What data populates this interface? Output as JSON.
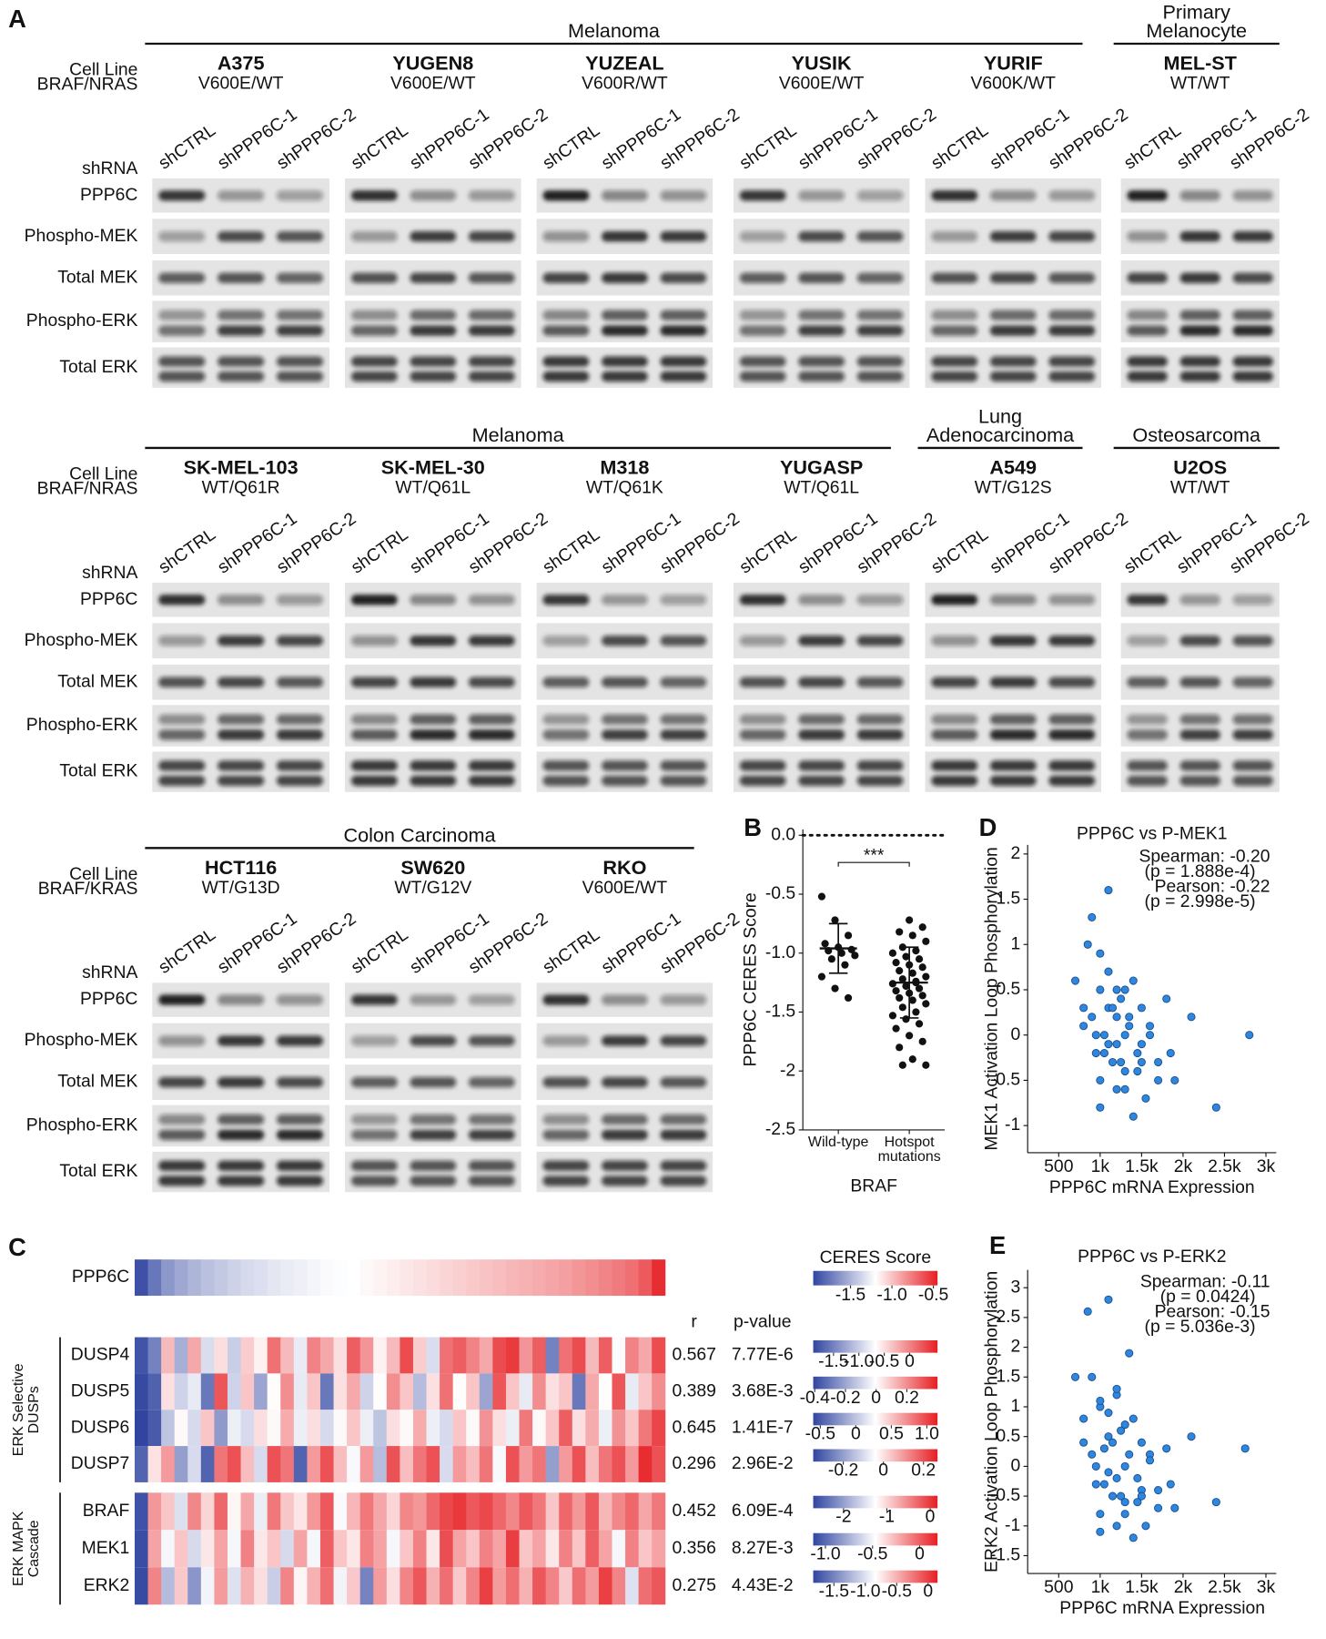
{
  "panel_a": {
    "label": "A",
    "lanes": [
      "shCTRL",
      "shPPP6C-1",
      "shPPP6C-2"
    ],
    "shrna_label": "shRNA",
    "blot_labels": [
      "PPP6C",
      "Phospho-MEK",
      "Total MEK",
      "Phospho-ERK",
      "Total ERK"
    ],
    "rows": [
      {
        "cell_line_label": "Cell Line",
        "genotype_label": "BRAF/NRAS",
        "groups": [
          {
            "title": "Melanoma",
            "cell_lines": [
              {
                "name": "A375",
                "genotype": "V600E/WT"
              },
              {
                "name": "YUGEN8",
                "genotype": "V600E/WT"
              },
              {
                "name": "YUZEAL",
                "genotype": "V600R/WT"
              },
              {
                "name": "YUSIK",
                "genotype": "V600E/WT"
              },
              {
                "name": "YURIF",
                "genotype": "V600K/WT"
              }
            ]
          },
          {
            "title": "Primary Melanocyte",
            "cell_lines": [
              {
                "name": "MEL-ST",
                "genotype": "WT/WT"
              }
            ]
          }
        ]
      },
      {
        "cell_line_label": "Cell Line",
        "genotype_label": "BRAF/NRAS",
        "groups": [
          {
            "title": "Melanoma",
            "cell_lines": [
              {
                "name": "SK-MEL-103",
                "genotype": "WT/Q61R"
              },
              {
                "name": "SK-MEL-30",
                "genotype": "WT/Q61L"
              },
              {
                "name": "M318",
                "genotype": "WT/Q61K"
              },
              {
                "name": "YUGASP",
                "genotype": "WT/Q61L"
              }
            ]
          },
          {
            "title": "Lung Adenocarcinoma",
            "cell_lines": [
              {
                "name": "A549",
                "genotype": "WT/G12S"
              }
            ]
          },
          {
            "title": "Osteosarcoma",
            "cell_lines": [
              {
                "name": "U2OS",
                "genotype": "WT/WT"
              }
            ]
          }
        ]
      },
      {
        "cell_line_label": "Cell Line",
        "genotype_label": "BRAF/KRAS",
        "groups": [
          {
            "title": "Colon Carcinoma",
            "cell_lines": [
              {
                "name": "HCT116",
                "genotype": "WT/G13D"
              },
              {
                "name": "SW620",
                "genotype": "WT/G12V"
              },
              {
                "name": "RKO",
                "genotype": "V600E/WT"
              }
            ]
          }
        ]
      }
    ]
  },
  "panel_c": {
    "label": "C",
    "scale_title": "CERES Score",
    "r_header": "r",
    "p_header": "p-value",
    "target": {
      "name": "PPP6C",
      "lim": [
        -1.95,
        -0.45
      ],
      "ticks": [
        -1.5,
        {
          "value": -1,
          "label": "-1.0"
        },
        -0.5
      ],
      "values": [
        -1.9,
        -1.75,
        -1.62,
        -1.55,
        -1.5,
        -1.45,
        -1.42,
        -1.38,
        -1.35,
        -1.33,
        -1.3,
        -1.28,
        -1.26,
        -1.24,
        -1.22,
        -1.21,
        -1.2,
        -1.18,
        -1.16,
        -1.14,
        -1.12,
        -1.1,
        -1.08,
        -1.06,
        -1.04,
        -1.02,
        -1.0,
        -0.98,
        -0.96,
        -0.94,
        -0.92,
        -0.9,
        -0.88,
        -0.85,
        -0.82,
        -0.79,
        -0.76,
        -0.72,
        -0.65,
        -0.5
      ]
    },
    "groups": [
      {
        "title": "ERK Selective DUSPs",
        "rows": [
          {
            "name": "DUSP4",
            "r": 0.567,
            "p": "7.77E-6",
            "lim": [
              -1.9,
              0.55
            ],
            "ticks": [
              -1.5,
              {
                "value": -1,
                "label": "-1.0"
              },
              -0.5,
              0
            ],
            "values": [
              -1.8,
              -1.5,
              -0.3,
              -1.2,
              -0.2,
              -0.9,
              -0.5,
              -1.0,
              -0.4,
              -0.6,
              0.1,
              -0.3,
              -0.8,
              0.0,
              -0.2,
              -0.5,
              0.2,
              -0.1,
              -0.6,
              -0.3,
              0.3,
              -0.4,
              -0.9,
              0.1,
              0.2,
              0.0,
              -0.2,
              0.3,
              0.4,
              -0.1,
              0.2,
              -1.5,
              0.1,
              0.3,
              -0.3,
              0.2,
              -0.7,
              0.0,
              -0.2,
              0.3
            ]
          },
          {
            "name": "DUSP5",
            "r": 0.389,
            "p": "3.68E-3",
            "lim": [
              -0.41,
              0.4
            ],
            "ticks": [
              -0.4,
              -0.2,
              0,
              0.2
            ],
            "values": [
              -0.4,
              -0.35,
              0.05,
              -0.1,
              -0.05,
              -0.3,
              0.3,
              -0.1,
              0.1,
              -0.2,
              0.0,
              0.2,
              -0.05,
              0.1,
              -0.3,
              0.05,
              0.15,
              -0.1,
              0.0,
              0.2,
              0.1,
              -0.15,
              0.05,
              0.25,
              0.0,
              0.1,
              -0.2,
              0.3,
              0.1,
              -0.05,
              0.2,
              0.05,
              0.1,
              -0.3,
              0.15,
              0.0,
              0.3,
              -0.05,
              0.1,
              0.2
            ]
          },
          {
            "name": "DUSP6",
            "r": 0.645,
            "p": "1.41E-7",
            "lim": [
              -0.6,
              1.15
            ],
            "ticks": [
              -0.5,
              0,
              0.5,
              {
                "value": 1,
                "label": "1.0"
              }
            ],
            "values": [
              -0.6,
              -0.5,
              0.0,
              0.3,
              0.1,
              0.5,
              -0.2,
              0.2,
              0.1,
              0.4,
              0.3,
              0.6,
              0.2,
              0.4,
              0.1,
              0.3,
              0.5,
              0.2,
              0.0,
              0.4,
              0.3,
              0.6,
              0.2,
              0.1,
              0.5,
              0.3,
              0.7,
              0.4,
              0.2,
              0.8,
              0.3,
              0.5,
              0.9,
              0.4,
              0.6,
              0.2,
              0.7,
              0.5,
              0.8,
              1.0
            ]
          },
          {
            "name": "DUSP7",
            "r": 0.296,
            "p": "2.96E-2",
            "lim": [
              -0.35,
              0.27
            ],
            "ticks": [
              -0.2,
              0,
              0.2
            ],
            "values": [
              -0.3,
              0.0,
              0.1,
              -0.2,
              -0.1,
              -0.3,
              0.15,
              0.2,
              0.05,
              -0.1,
              0.2,
              0.15,
              -0.3,
              0.1,
              0.2,
              0.05,
              -0.05,
              0.1,
              -0.15,
              0.2,
              0.05,
              0.15,
              0.2,
              -0.1,
              0.1,
              0.05,
              0.15,
              -0.05,
              0.2,
              0.1,
              0.15,
              -0.2,
              0.1,
              0.2,
              0.05,
              0.15,
              0.2,
              0.1,
              0.25,
              0.2
            ]
          }
        ]
      },
      {
        "title": "ERK MAPK Cascade",
        "rows": [
          {
            "name": "BRAF",
            "r": 0.452,
            "p": "6.09E-4",
            "lim": [
              -2.7,
              0.17
            ],
            "ticks": [
              -2,
              -1,
              0
            ],
            "values": [
              -2.6,
              -0.6,
              -0.9,
              -1.5,
              -0.5,
              -1.0,
              -0.3,
              -1.2,
              -0.7,
              -1.4,
              -0.4,
              -0.9,
              -1.1,
              -0.6,
              -0.2,
              -1.3,
              -0.8,
              -0.4,
              -0.7,
              -1.0,
              -0.5,
              -0.6,
              -0.3,
              -0.1,
              0.0,
              -0.2,
              -0.1,
              -0.3,
              -0.5,
              -0.2,
              -0.4,
              -0.9,
              -0.3,
              -0.6,
              -0.2,
              -0.8,
              -0.5,
              -0.3,
              -0.7,
              -0.4
            ]
          },
          {
            "name": "MEK1",
            "r": 0.356,
            "p": "8.27E-3",
            "lim": [
              -1.13,
              0.19
            ],
            "ticks": [
              {
                "value": -1,
                "label": "-1.0"
              },
              -0.5,
              0
            ],
            "values": [
              -1.1,
              -0.2,
              -0.5,
              -0.3,
              -0.6,
              -0.4,
              -0.2,
              -0.5,
              -0.1,
              -0.4,
              -0.3,
              -0.6,
              -0.2,
              -0.5,
              0.0,
              -0.3,
              -0.4,
              -0.1,
              -0.2,
              -0.5,
              -0.3,
              -0.1,
              -0.4,
              0.05,
              -0.2,
              -0.3,
              -0.1,
              -0.2,
              0.1,
              -0.3,
              -0.2,
              -0.4,
              -0.1,
              -0.3,
              0.0,
              -0.2,
              -0.5,
              -0.1,
              -0.3,
              -0.2
            ]
          },
          {
            "name": "ERK2",
            "r": 0.275,
            "p": "4.43E-2",
            "lim": [
              -1.83,
              0.15
            ],
            "ticks": [
              -1.5,
              {
                "value": -1,
                "label": "-1.0"
              },
              -0.5,
              0
            ],
            "values": [
              -1.8,
              -0.3,
              -1.2,
              -0.6,
              -1.4,
              -0.9,
              -0.4,
              -1.0,
              -0.5,
              -0.7,
              -1.1,
              -0.3,
              -0.8,
              -0.5,
              -0.2,
              -0.9,
              -0.6,
              -1.5,
              -0.4,
              -0.7,
              -0.3,
              -0.1,
              -0.5,
              -0.2,
              -0.6,
              -0.3,
              0.0,
              -0.4,
              -0.2,
              -0.5,
              -0.1,
              -0.3,
              -0.6,
              -0.2,
              -0.4,
              0.0,
              -0.3,
              -1.0,
              -0.2,
              -0.1
            ]
          }
        ]
      }
    ]
  },
  "chart_data": [
    {
      "type": "dot",
      "panel_label": "B",
      "ylabel": "PPP6C CERES Score",
      "xlabel": "BRAF",
      "categories": [
        "Wild-type",
        "Hotspot mutations"
      ],
      "values": [
        [
          -0.52,
          -0.72,
          -0.85,
          -0.92,
          -0.95,
          -0.97,
          -0.98,
          -1.0,
          -1.02,
          -1.05,
          -1.1,
          -1.2,
          -1.3,
          -1.38
        ],
        [
          -0.72,
          -0.78,
          -0.82,
          -0.85,
          -0.9,
          -0.95,
          -0.98,
          -1.0,
          -1.03,
          -1.05,
          -1.08,
          -1.1,
          -1.12,
          -1.15,
          -1.17,
          -1.2,
          -1.22,
          -1.24,
          -1.26,
          -1.28,
          -1.3,
          -1.32,
          -1.34,
          -1.36,
          -1.38,
          -1.4,
          -1.43,
          -1.46,
          -1.5,
          -1.53,
          -1.56,
          -1.6,
          -1.64,
          -1.7,
          -1.75,
          -1.8,
          -1.9,
          -1.95,
          -1.95,
          -1.25
        ]
      ],
      "means": [
        -0.96,
        -1.25
      ],
      "sds": [
        0.21,
        0.3
      ],
      "significance": "***",
      "reference_y": 0,
      "ylim": [
        -2.5,
        0.05
      ],
      "yticks": [
        {
          "value": 0,
          "label": "0.0"
        },
        -0.5,
        {
          "value": -1,
          "label": "-1.0"
        },
        -1.5,
        -2,
        -2.5
      ],
      "color": "#111111"
    },
    {
      "type": "scatter",
      "panel_label": "D",
      "title": "PPP6C vs P-MEK1",
      "xlabel": "PPP6C mRNA Expression",
      "ylabel": "MEK1 Activation Loop Phosphorylation",
      "annotations": [
        "Spearman: -0.20",
        "(p = 1.888e-4)",
        "Pearson: -0.22",
        "(p = 2.998e-5)"
      ],
      "x": [
        700,
        800,
        850,
        900,
        950,
        1000,
        1000,
        1050,
        1100,
        1100,
        1150,
        1200,
        1200,
        1250,
        1300,
        1300,
        1350,
        1400,
        1450,
        1500,
        1550,
        1600,
        1700,
        1800,
        1900,
        2100,
        2400,
        2800,
        900,
        1000,
        1100,
        1200,
        1300,
        1400,
        1500,
        1600,
        1000,
        1150,
        1250,
        1350,
        950,
        1050,
        1200,
        1300,
        1450,
        1700,
        800,
        1100,
        1500,
        1850
      ],
      "values": [
        0.6,
        0.3,
        1.0,
        0.2,
        -0.2,
        0.5,
        -0.5,
        0.0,
        1.6,
        0.3,
        -0.3,
        0.2,
        -0.6,
        0.4,
        0.0,
        -0.4,
        0.1,
        0.6,
        -0.2,
        0.3,
        -0.7,
        0.0,
        -0.3,
        0.4,
        -0.5,
        0.2,
        -0.8,
        0.0,
        1.3,
        0.9,
        0.7,
        -0.1,
        0.5,
        -0.9,
        -0.1,
        0.1,
        -0.8,
        0.3,
        -0.3,
        0.2,
        0.0,
        -0.2,
        0.5,
        -0.6,
        -0.4,
        -0.5,
        0.1,
        -0.1,
        -0.3,
        -0.2
      ],
      "xlim": [
        125,
        3125
      ],
      "ylim": [
        -1.3,
        2.1
      ],
      "xticks": [
        500,
        {
          "value": 1000,
          "label": "1k"
        },
        {
          "value": 1500,
          "label": "1.5k"
        },
        {
          "value": 2000,
          "label": "2k"
        },
        {
          "value": 2500,
          "label": "2.5k"
        },
        {
          "value": 3000,
          "label": "3k"
        }
      ],
      "yticks": [
        -1,
        -0.5,
        0,
        0.5,
        1,
        1.5,
        2
      ],
      "color": "#2e86de"
    },
    {
      "type": "scatter",
      "panel_label": "E",
      "title": "PPP6C vs P-ERK2",
      "xlabel": "PPP6C mRNA Expression",
      "ylabel": "ERK2 Activation Loop Phosphorylation",
      "annotations": [
        "Spearman: -0.11",
        "(p = 0.0424)",
        "Pearson: -0.15",
        "(p = 5.036e-3)"
      ],
      "x": [
        700,
        800,
        850,
        900,
        950,
        1000,
        1000,
        1050,
        1100,
        1100,
        1150,
        1200,
        1200,
        1250,
        1300,
        1300,
        1350,
        1400,
        1450,
        1500,
        1550,
        1600,
        1700,
        1800,
        1900,
        2100,
        2400,
        2750,
        900,
        1000,
        1100,
        1200,
        1300,
        1400,
        1500,
        1600,
        1000,
        1150,
        1250,
        1350,
        950,
        1050,
        1200,
        1300,
        1450,
        1700,
        800,
        1100,
        1500,
        1850
      ],
      "values": [
        1.5,
        0.8,
        2.6,
        0.2,
        -0.3,
        1.0,
        -0.8,
        0.3,
        2.8,
        0.5,
        -0.5,
        1.2,
        -1.0,
        0.6,
        0.0,
        -0.6,
        1.9,
        0.8,
        -0.2,
        0.4,
        -1.0,
        0.2,
        -0.4,
        0.3,
        -0.7,
        0.5,
        -0.6,
        0.3,
        1.5,
        1.1,
        0.9,
        -0.2,
        0.7,
        -1.2,
        -0.4,
        0.1,
        -1.1,
        0.4,
        -0.5,
        0.2,
        0.0,
        -0.3,
        1.3,
        -0.8,
        -0.6,
        -0.7,
        0.4,
        -0.1,
        -0.5,
        -0.3
      ],
      "xlim": [
        125,
        3125
      ],
      "ylim": [
        -1.8,
        3.3
      ],
      "xticks": [
        500,
        {
          "value": 1000,
          "label": "1k"
        },
        {
          "value": 1500,
          "label": "1.5k"
        },
        {
          "value": 2000,
          "label": "2k"
        },
        {
          "value": 2500,
          "label": "2.5k"
        },
        {
          "value": 3000,
          "label": "3k"
        }
      ],
      "yticks": [
        -1.5,
        -1,
        -0.5,
        0,
        0.5,
        1,
        1.5,
        2,
        2.5,
        3
      ],
      "color": "#2e86de"
    }
  ]
}
